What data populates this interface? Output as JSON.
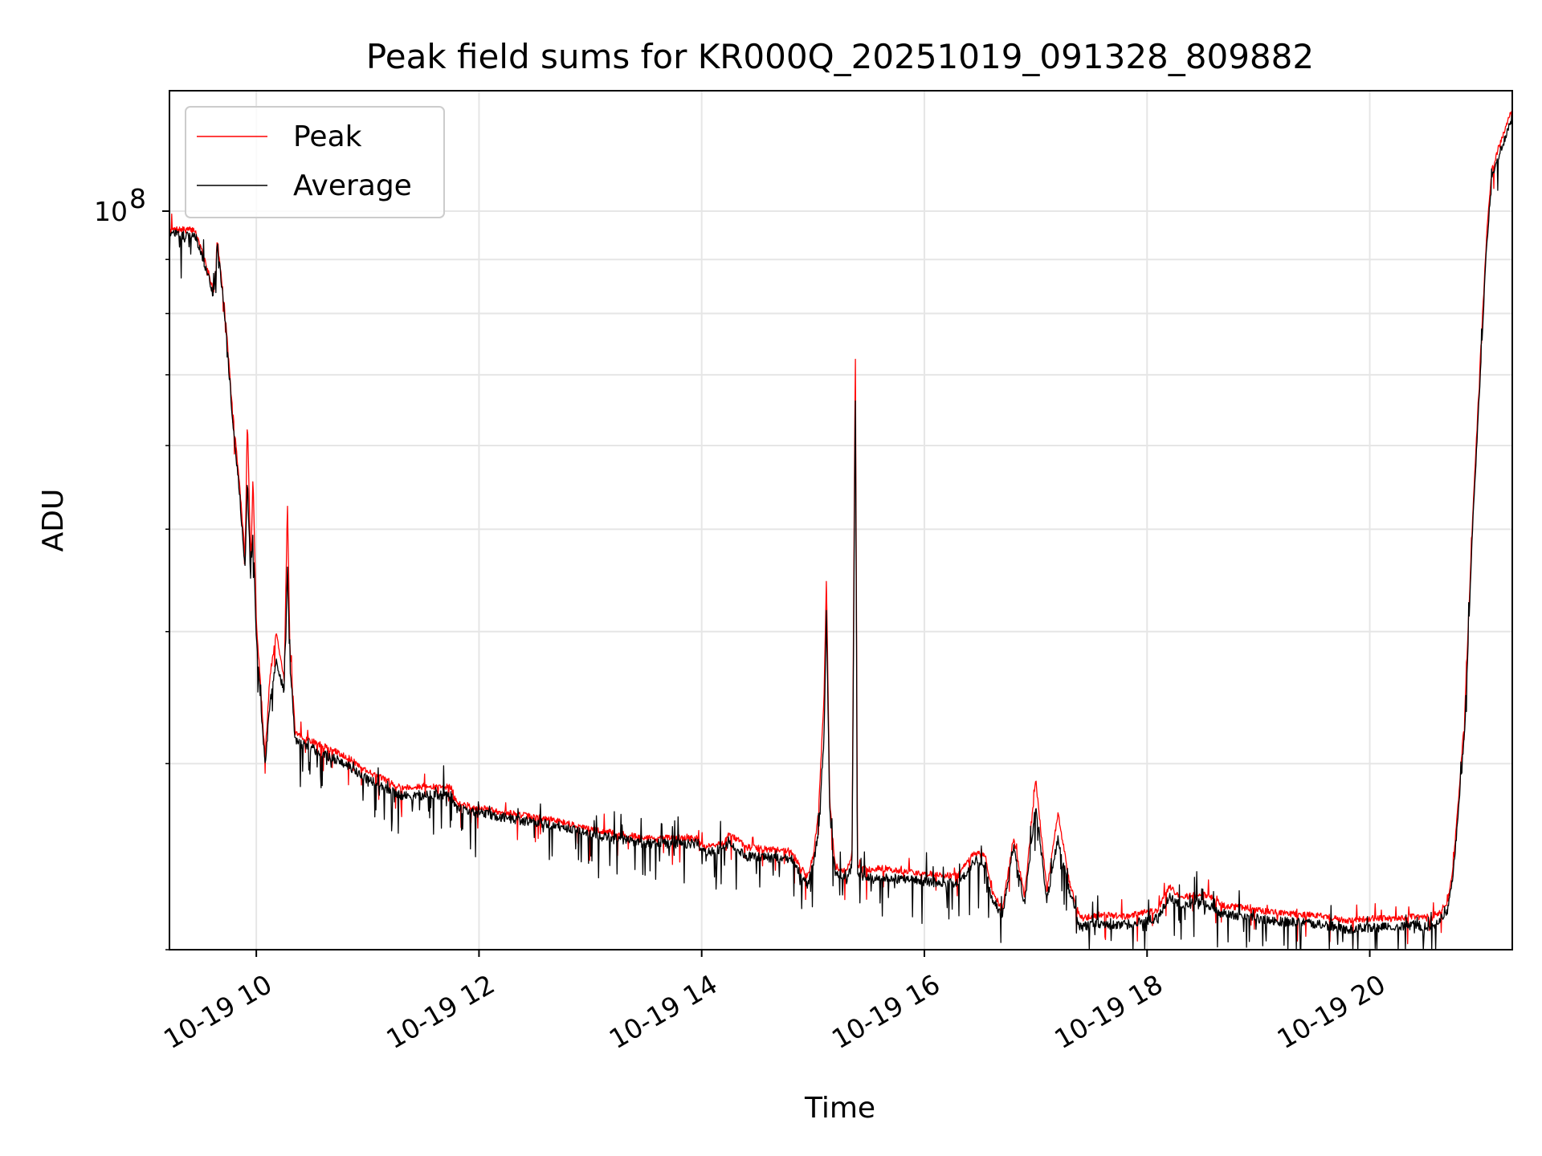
{
  "chart_data": {
    "type": "line",
    "title": "Peak field sums for KR000Q_20251019_091328_809882",
    "xlabel": "Time",
    "ylabel": "ADU",
    "yscale": "log",
    "ylim": [
      20000000,
      130000000
    ],
    "xlim_hours": [
      9.22,
      21.28
    ],
    "grid": true,
    "legend_position": "upper-left",
    "x_ticks": [
      {
        "label": "10-19 10",
        "hour": 10
      },
      {
        "label": "10-19 12",
        "hour": 12
      },
      {
        "label": "10-19 14",
        "hour": 14
      },
      {
        "label": "10-19 16",
        "hour": 16
      },
      {
        "label": "10-19 18",
        "hour": 18
      },
      {
        "label": "10-19 20",
        "hour": 20
      }
    ],
    "y_major_ticks": [
      {
        "value": 100000000,
        "label_base": "10",
        "label_exp": "8"
      }
    ],
    "y_minor_ticks": [
      20000000,
      30000000,
      40000000,
      50000000,
      60000000,
      70000000,
      80000000,
      90000000
    ],
    "series": [
      {
        "name": "Peak",
        "color": "#ff0000",
        "points": [
          [
            9.22,
            96000000
          ],
          [
            9.45,
            96000000
          ],
          [
            9.62,
            84000000
          ],
          [
            9.65,
            94000000
          ],
          [
            9.72,
            80000000
          ],
          [
            9.78,
            66000000
          ],
          [
            9.85,
            55000000
          ],
          [
            9.9,
            47000000
          ],
          [
            9.92,
            64000000
          ],
          [
            9.95,
            46000000
          ],
          [
            9.97,
            56000000
          ],
          [
            10.0,
            41000000
          ],
          [
            10.05,
            34000000
          ],
          [
            10.08,
            30500000
          ],
          [
            10.12,
            36000000
          ],
          [
            10.18,
            40000000
          ],
          [
            10.25,
            36000000
          ],
          [
            10.28,
            53000000
          ],
          [
            10.3,
            39000000
          ],
          [
            10.35,
            32000000
          ],
          [
            10.5,
            31500000
          ],
          [
            10.8,
            30500000
          ],
          [
            11.0,
            29500000
          ],
          [
            11.3,
            28500000
          ],
          [
            11.75,
            28500000
          ],
          [
            11.8,
            27500000
          ],
          [
            12.2,
            27000000
          ],
          [
            12.7,
            26500000
          ],
          [
            13.0,
            26000000
          ],
          [
            13.5,
            25500000
          ],
          [
            13.98,
            25500000
          ],
          [
            14.0,
            25000000
          ],
          [
            14.2,
            25200000
          ],
          [
            14.25,
            25800000
          ],
          [
            14.4,
            25000000
          ],
          [
            14.8,
            24800000
          ],
          [
            14.95,
            23400000
          ],
          [
            15.0,
            24500000
          ],
          [
            15.05,
            27000000
          ],
          [
            15.1,
            35000000
          ],
          [
            15.12,
            45000000
          ],
          [
            15.15,
            27500000
          ],
          [
            15.2,
            24000000
          ],
          [
            15.3,
            23700000
          ],
          [
            15.35,
            24500000
          ],
          [
            15.38,
            75000000
          ],
          [
            15.4,
            24000000
          ],
          [
            15.5,
            23800000
          ],
          [
            15.6,
            23900000
          ],
          [
            16.0,
            23600000
          ],
          [
            16.3,
            23500000
          ],
          [
            16.45,
            24700000
          ],
          [
            16.55,
            24500000
          ],
          [
            16.6,
            22800000
          ],
          [
            16.7,
            21800000
          ],
          [
            16.8,
            25500000
          ],
          [
            16.9,
            22500000
          ],
          [
            17.0,
            29000000
          ],
          [
            17.1,
            22700000
          ],
          [
            17.2,
            27000000
          ],
          [
            17.3,
            23200000
          ],
          [
            17.4,
            21400000
          ],
          [
            17.6,
            21600000
          ],
          [
            17.8,
            21500000
          ],
          [
            18.0,
            21700000
          ],
          [
            18.1,
            21800000
          ],
          [
            18.2,
            23000000
          ],
          [
            18.3,
            22400000
          ],
          [
            18.5,
            22600000
          ],
          [
            18.7,
            22000000
          ],
          [
            18.9,
            21900000
          ],
          [
            19.1,
            21700000
          ],
          [
            19.4,
            21600000
          ],
          [
            19.6,
            21500000
          ],
          [
            19.8,
            21300000
          ],
          [
            20.0,
            21400000
          ],
          [
            20.2,
            21400000
          ],
          [
            20.4,
            21500000
          ],
          [
            20.55,
            21400000
          ],
          [
            20.62,
            21700000
          ],
          [
            20.7,
            22200000
          ],
          [
            20.75,
            24000000
          ],
          [
            20.8,
            28000000
          ],
          [
            20.85,
            33000000
          ],
          [
            20.92,
            50000000
          ],
          [
            21.0,
            75000000
          ],
          [
            21.05,
            95000000
          ],
          [
            21.1,
            110000000
          ],
          [
            21.2,
            118000000
          ],
          [
            21.28,
            125000000
          ]
        ]
      },
      {
        "name": "Average",
        "color": "#000000",
        "points": [
          [
            9.22,
            95000000
          ],
          [
            9.45,
            95000000
          ],
          [
            9.62,
            83000000
          ],
          [
            9.65,
            93000000
          ],
          [
            9.72,
            79000000
          ],
          [
            9.78,
            65000000
          ],
          [
            9.85,
            54000000
          ],
          [
            9.9,
            45500000
          ],
          [
            9.92,
            56000000
          ],
          [
            9.95,
            44500000
          ],
          [
            9.97,
            50000000
          ],
          [
            10.0,
            39500000
          ],
          [
            10.05,
            33000000
          ],
          [
            10.08,
            29800000
          ],
          [
            10.12,
            34000000
          ],
          [
            10.18,
            37500000
          ],
          [
            10.25,
            35000000
          ],
          [
            10.28,
            46000000
          ],
          [
            10.3,
            37500000
          ],
          [
            10.35,
            31500000
          ],
          [
            10.5,
            31000000
          ],
          [
            10.8,
            30000000
          ],
          [
            11.0,
            29000000
          ],
          [
            11.3,
            28000000
          ],
          [
            11.75,
            28000000
          ],
          [
            11.8,
            27200000
          ],
          [
            12.2,
            26700000
          ],
          [
            12.7,
            26200000
          ],
          [
            13.0,
            25700000
          ],
          [
            13.5,
            25200000
          ],
          [
            13.98,
            25200000
          ],
          [
            14.0,
            24700000
          ],
          [
            14.2,
            24900000
          ],
          [
            14.25,
            25300000
          ],
          [
            14.4,
            24500000
          ],
          [
            14.8,
            24400000
          ],
          [
            14.95,
            23000000
          ],
          [
            15.0,
            24000000
          ],
          [
            15.05,
            26000000
          ],
          [
            15.1,
            32000000
          ],
          [
            15.12,
            42000000
          ],
          [
            15.15,
            27000000
          ],
          [
            15.2,
            23600000
          ],
          [
            15.3,
            23300000
          ],
          [
            15.35,
            24000000
          ],
          [
            15.38,
            68000000
          ],
          [
            15.4,
            23500000
          ],
          [
            15.5,
            23400000
          ],
          [
            15.6,
            23400000
          ],
          [
            16.0,
            23200000
          ],
          [
            16.3,
            23100000
          ],
          [
            16.45,
            24200000
          ],
          [
            16.55,
            24000000
          ],
          [
            16.6,
            22400000
          ],
          [
            16.7,
            21500000
          ],
          [
            16.8,
            25000000
          ],
          [
            16.9,
            22100000
          ],
          [
            17.0,
            27500000
          ],
          [
            17.1,
            22300000
          ],
          [
            17.2,
            25500000
          ],
          [
            17.3,
            22800000
          ],
          [
            17.4,
            21000000
          ],
          [
            17.6,
            21200000
          ],
          [
            17.8,
            21100000
          ],
          [
            18.0,
            21300000
          ],
          [
            18.1,
            21400000
          ],
          [
            18.2,
            22500000
          ],
          [
            18.3,
            22000000
          ],
          [
            18.5,
            22200000
          ],
          [
            18.7,
            21600000
          ],
          [
            18.9,
            21500000
          ],
          [
            19.1,
            21300000
          ],
          [
            19.4,
            21200000
          ],
          [
            19.6,
            21100000
          ],
          [
            19.8,
            20900000
          ],
          [
            20.0,
            21000000
          ],
          [
            20.2,
            21000000
          ],
          [
            20.4,
            21100000
          ],
          [
            20.55,
            21000000
          ],
          [
            20.62,
            21300000
          ],
          [
            20.7,
            21800000
          ],
          [
            20.75,
            23500000
          ],
          [
            20.8,
            27500000
          ],
          [
            20.85,
            32000000
          ],
          [
            20.92,
            49000000
          ],
          [
            21.0,
            73000000
          ],
          [
            21.05,
            93000000
          ],
          [
            21.1,
            108000000
          ],
          [
            21.2,
            116000000
          ],
          [
            21.28,
            123000000
          ]
        ]
      }
    ]
  },
  "colors": {
    "grid": "#e6e6e6",
    "axis": "#000000",
    "legend_border": "#cccccc"
  }
}
